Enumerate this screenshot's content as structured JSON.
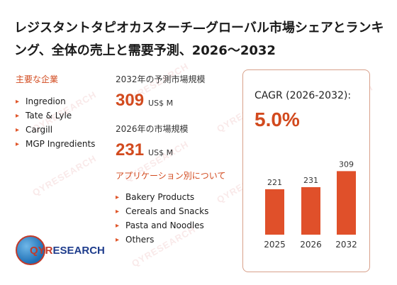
{
  "title": "レジスタントタピオカスターチ—グローバル市場シェアとランキング、全体の売上と需要予測、2026～2032",
  "players": {
    "label": "主要な企業",
    "items": [
      "Ingredion",
      "Tate & Lyle",
      "Cargill",
      "MGP Ingredients"
    ]
  },
  "metrics": {
    "forecast_label": "2032年の予測市場規模",
    "forecast_value": "309",
    "forecast_unit": "US$ M",
    "current_label": "2026年の市場規模",
    "current_value": "231",
    "current_unit": "US$ M"
  },
  "applications": {
    "label": "アプリケーション別について",
    "items": [
      "Bakery Products",
      "Cereals and Snacks",
      "Pasta and Noodles",
      "Others"
    ]
  },
  "cagr": {
    "label": "CAGR (2026-2032):",
    "value": "5.0%"
  },
  "logo": {
    "q": "QYR",
    "rest": "ESEARCH"
  },
  "watermark": "QYRESEARCH",
  "colors": {
    "accent": "#d24a1e",
    "bar": "#e0502a"
  },
  "chart_data": {
    "type": "bar",
    "categories": [
      "2025",
      "2026",
      "2032"
    ],
    "values": [
      221,
      231,
      309
    ],
    "title": "",
    "xlabel": "",
    "ylabel": ""
  }
}
